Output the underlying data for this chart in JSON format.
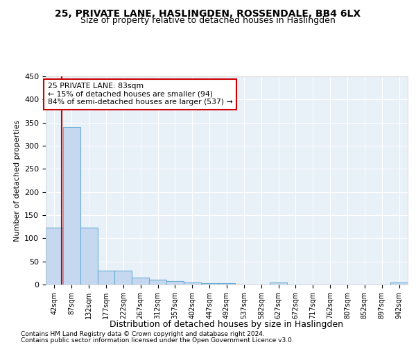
{
  "title_line1": "25, PRIVATE LANE, HASLINGDEN, ROSSENDALE, BB4 6LX",
  "title_line2": "Size of property relative to detached houses in Haslingden",
  "xlabel": "Distribution of detached houses by size in Haslingden",
  "ylabel": "Number of detached properties",
  "bar_labels": [
    "42sqm",
    "87sqm",
    "132sqm",
    "177sqm",
    "222sqm",
    "267sqm",
    "312sqm",
    "357sqm",
    "402sqm",
    "447sqm",
    "492sqm",
    "537sqm",
    "582sqm",
    "627sqm",
    "672sqm",
    "717sqm",
    "762sqm",
    "807sqm",
    "852sqm",
    "897sqm",
    "942sqm"
  ],
  "bar_values": [
    123,
    340,
    123,
    30,
    30,
    15,
    10,
    7,
    5,
    3,
    3,
    0,
    0,
    5,
    0,
    0,
    0,
    0,
    0,
    0,
    5
  ],
  "bar_color": "#c5d8f0",
  "bar_edge_color": "#6baed6",
  "annotation_box_text_line1": "25 PRIVATE LANE: 83sqm",
  "annotation_box_text_line2": "← 15% of detached houses are smaller (94)",
  "annotation_box_text_line3": "84% of semi-detached houses are larger (537) →",
  "vline_color": "#cc0000",
  "box_edge_color": "#cc0000",
  "ylim": [
    0,
    450
  ],
  "yticks": [
    0,
    50,
    100,
    150,
    200,
    250,
    300,
    350,
    400,
    450
  ],
  "footnote1": "Contains HM Land Registry data © Crown copyright and database right 2024.",
  "footnote2": "Contains public sector information licensed under the Open Government Licence v3.0.",
  "plot_bg_color": "#e8f0f8"
}
